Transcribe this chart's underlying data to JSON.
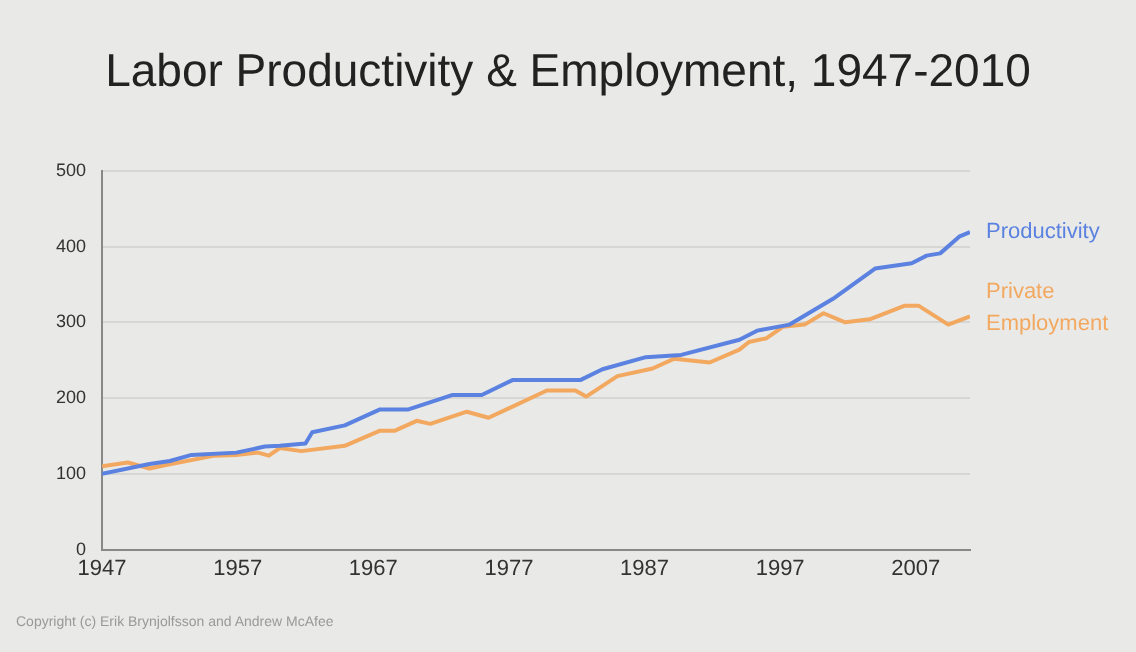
{
  "chart_data": {
    "type": "line",
    "title": "Labor Productivity & Employment, 1947-2010",
    "xlim": [
      1947,
      2011
    ],
    "xticks": [
      1947,
      1957,
      1967,
      1977,
      1987,
      1997,
      2007
    ],
    "ylim": [
      0,
      500
    ],
    "yticks": [
      0,
      100,
      200,
      300,
      400,
      500
    ],
    "grid": "y",
    "legend": false,
    "marker": "none",
    "line_style": "solid",
    "series": [
      {
        "name": "Productivity",
        "color": "#5b82e0",
        "x": [
          1947,
          1950.5,
          1952,
          1953.6,
          1956.9,
          1959,
          1960.1,
          1962,
          1962.5,
          1964.9,
          1967.5,
          1969.6,
          1972.8,
          1975,
          1977.3,
          1982.3,
          1983.9,
          1987.1,
          1989.7,
          1994,
          1995.3,
          1997.7,
          2000.9,
          2004,
          2006.7,
          2007.8,
          2008.8,
          2010.2,
          2011
        ],
        "values": [
          100,
          113,
          117,
          125,
          128,
          136,
          137,
          140,
          155,
          164,
          185,
          185,
          204,
          204,
          224,
          224,
          238,
          254,
          257,
          277,
          289,
          297,
          331,
          371,
          378,
          388,
          391,
          413,
          419
        ]
      },
      {
        "name": "Private Employment",
        "color": "#f3a860",
        "x": [
          1947,
          1948.9,
          1950.5,
          1951.8,
          1955.3,
          1956.9,
          1958.5,
          1959.3,
          1960.1,
          1961.7,
          1964.9,
          1967.5,
          1968.6,
          1970.2,
          1971.2,
          1973.9,
          1975.5,
          1979.8,
          1981.9,
          1982.7,
          1985,
          1987.6,
          1989.2,
          1991.8,
          1994,
          1994.7,
          1996,
          1997.2,
          1998.8,
          2000.2,
          2001.8,
          2003.6,
          2006.2,
          2007.2,
          2009.4,
          2011
        ],
        "values": [
          110,
          115,
          107,
          112,
          124,
          125,
          128,
          124,
          134,
          130,
          137,
          157,
          157,
          170,
          166,
          182,
          174,
          210,
          210,
          202,
          229,
          239,
          252,
          247,
          264,
          274,
          279,
          294,
          297,
          312,
          300,
          304,
          322,
          322,
          297,
          308
        ]
      }
    ],
    "annotations": [
      "Copyright (c) Erik Brynjolfsson and Andrew McAfee"
    ]
  }
}
